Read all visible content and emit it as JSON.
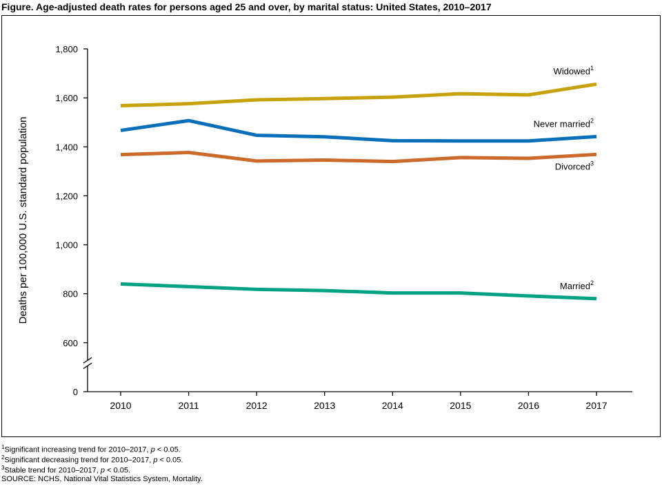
{
  "chart_data": {
    "type": "line",
    "title": "Figure. Age-adjusted death rates for persons aged 25 and over, by marital status: United States, 2010–2017",
    "y_label": "Deaths per 100,000 U.S. standard population",
    "categories": [
      "2010",
      "2011",
      "2012",
      "2013",
      "2014",
      "2015",
      "2016",
      "2017"
    ],
    "series": [
      {
        "name": "Widowed",
        "note": "1",
        "color": "#c8a20c",
        "values": [
          1568,
          1576,
          1592,
          1597,
          1603,
          1617,
          1612,
          1656
        ]
      },
      {
        "name": "Never married",
        "note": "2",
        "color": "#0a6fba",
        "values": [
          1467,
          1507,
          1447,
          1441,
          1425,
          1424,
          1424,
          1442
        ]
      },
      {
        "name": "Divorced",
        "note": "3",
        "color": "#cc6a2c",
        "values": [
          1368,
          1377,
          1342,
          1346,
          1340,
          1356,
          1353,
          1369
        ]
      },
      {
        "name": "Married",
        "note": "2",
        "color": "#00a284",
        "values": [
          840,
          829,
          818,
          813,
          803,
          803,
          791,
          780
        ]
      }
    ],
    "ylim": [
      0,
      1800
    ],
    "yticks": [
      0,
      600,
      800,
      {
        "value": 1000,
        "label": "1,000"
      },
      {
        "value": 1200,
        "label": "1,200"
      },
      {
        "value": 1400,
        "label": "1,400"
      },
      {
        "value": 1600,
        "label": "1,600"
      },
      {
        "value": 1800,
        "label": "1,800"
      }
    ],
    "axis_break": true,
    "footnotes": [
      {
        "mark": "1",
        "text": "Significant increasing trend for 2010–2017, ",
        "italic": "p",
        "rest": " < 0.05."
      },
      {
        "mark": "2",
        "text": "Significant decreasing trend for 2010–2017, ",
        "italic": "p",
        "rest": " < 0.05."
      },
      {
        "mark": "3",
        "text": "Stable trend for 2010–2017, ",
        "italic": "p",
        "rest": " < 0.05."
      }
    ],
    "source": "SOURCE: NCHS, National Vital Statistics System, Mortality."
  }
}
